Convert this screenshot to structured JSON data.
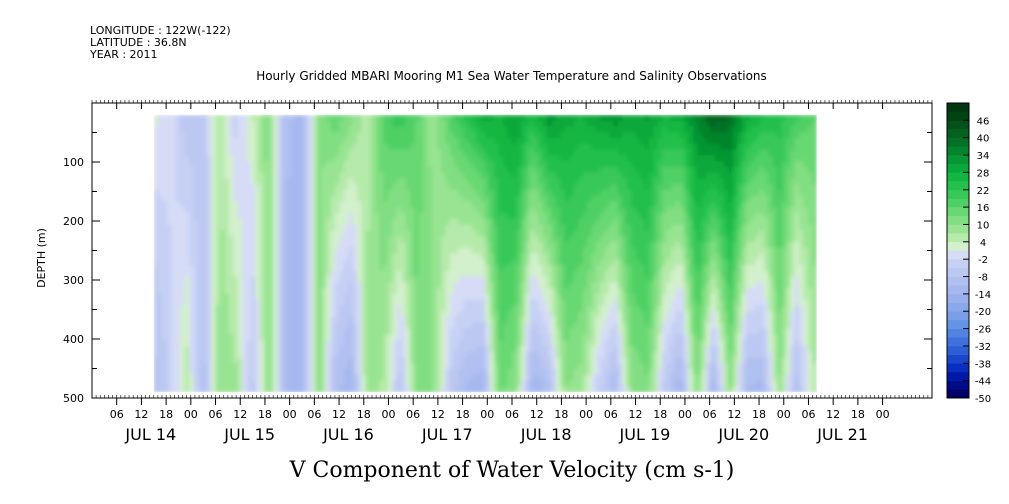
{
  "header": {
    "longitude": "LONGITUDE : 122W(-122)",
    "latitude": "LATITUDE : 36.8N",
    "year": "YEAR : 2011"
  },
  "chart_data": {
    "type": "heatmap",
    "title": "Hourly Gridded MBARI Mooring M1 Sea Water Temperature and Salinity Observations",
    "xlabel": "V Component of Water Velocity (cm s-1)",
    "ylabel": "DEPTH (m)",
    "ylim": [
      0,
      500
    ],
    "y_inverted": true,
    "xlim": [
      "2011-07-13T00:00",
      "2011-07-21T12:00"
    ],
    "y_ticks": [
      100,
      200,
      300,
      400,
      500
    ],
    "hour_ticks": [
      "06",
      "12",
      "18",
      "00",
      "06",
      "12",
      "18",
      "00",
      "06",
      "12",
      "18",
      "00",
      "06",
      "12",
      "18",
      "00",
      "06",
      "12",
      "18",
      "00",
      "06",
      "12",
      "18",
      "00",
      "06",
      "12",
      "18",
      "00",
      "06",
      "12",
      "18",
      "00"
    ],
    "day_labels": [
      "JUL 14",
      "JUL 15",
      "JUL 16",
      "JUL 17",
      "JUL 18",
      "JUL 19",
      "JUL 20",
      "JUL 21"
    ],
    "data_extent": {
      "time_start": "2011-07-13T15:00",
      "time_end": "2011-07-20T08:00",
      "depth_top": 20,
      "depth_bottom": 490
    },
    "colorbar": {
      "labels": [
        46,
        40,
        34,
        28,
        22,
        16,
        10,
        4,
        -2,
        -8,
        -14,
        -20,
        -26,
        -32,
        -38,
        -44,
        -50
      ],
      "min": -50,
      "max": 52,
      "step": 3,
      "colors_neg_to_pos": [
        "#000066",
        "#000a8a",
        "#0019a6",
        "#0a2ec0",
        "#1a46cc",
        "#2e5ed4",
        "#4070dc",
        "#5282e2",
        "#6494e6",
        "#7a9eea",
        "#8ca8ec",
        "#9ab0ee",
        "#a6b8ef",
        "#b0c0f0",
        "#bcc8f2",
        "#c6d0f4",
        "#d6dcf6",
        "#d2f0cc",
        "#b6eaaa",
        "#98e492",
        "#82de82",
        "#68d872",
        "#50d064",
        "#38c858",
        "#24c04c",
        "#14b642",
        "#0aa83a",
        "#069632",
        "#04842c",
        "#037226",
        "#02621f",
        "#025219",
        "#014414",
        "#013810"
      ]
    },
    "series": [
      {
        "time": "2011-07-13T15:00",
        "surface": 2,
        "deep": -10
      },
      {
        "time": "2011-07-13T19:00",
        "surface": 0,
        "deep": -4
      },
      {
        "time": "2011-07-13T23:00",
        "surface": -8,
        "deep": 6
      },
      {
        "time": "2011-07-14T03:00",
        "surface": -6,
        "deep": -10
      },
      {
        "time": "2011-07-14T07:00",
        "surface": 6,
        "deep": 10
      },
      {
        "time": "2011-07-14T11:00",
        "surface": -4,
        "deep": 8
      },
      {
        "time": "2011-07-14T15:00",
        "surface": 4,
        "deep": -6
      },
      {
        "time": "2011-07-14T19:00",
        "surface": 12,
        "deep": 10
      },
      {
        "time": "2011-07-14T23:00",
        "surface": -10,
        "deep": -12
      },
      {
        "time": "2011-07-15T03:00",
        "surface": -12,
        "deep": -14
      },
      {
        "time": "2011-07-15T07:00",
        "surface": 10,
        "deep": 12
      },
      {
        "time": "2011-07-15T11:00",
        "surface": 16,
        "deep": -10
      },
      {
        "time": "2011-07-15T15:00",
        "surface": 12,
        "deep": -14
      },
      {
        "time": "2011-07-15T19:00",
        "surface": 4,
        "deep": 10
      },
      {
        "time": "2011-07-15T23:00",
        "surface": 18,
        "deep": 6
      },
      {
        "time": "2011-07-16T03:00",
        "surface": 22,
        "deep": -8
      },
      {
        "time": "2011-07-16T07:00",
        "surface": 16,
        "deep": 12
      },
      {
        "time": "2011-07-16T11:00",
        "surface": 8,
        "deep": 10
      },
      {
        "time": "2011-07-16T15:00",
        "surface": 18,
        "deep": -6
      },
      {
        "time": "2011-07-16T19:00",
        "surface": 24,
        "deep": -12
      },
      {
        "time": "2011-07-16T23:00",
        "surface": 30,
        "deep": -14
      },
      {
        "time": "2011-07-17T03:00",
        "surface": 28,
        "deep": 14
      },
      {
        "time": "2011-07-17T07:00",
        "surface": 32,
        "deep": 10
      },
      {
        "time": "2011-07-17T11:00",
        "surface": 26,
        "deep": -14
      },
      {
        "time": "2011-07-17T15:00",
        "surface": 34,
        "deep": -10
      },
      {
        "time": "2011-07-17T19:00",
        "surface": 30,
        "deep": 10
      },
      {
        "time": "2011-07-17T23:00",
        "surface": 28,
        "deep": 8
      },
      {
        "time": "2011-07-18T03:00",
        "surface": 32,
        "deep": -4
      },
      {
        "time": "2011-07-18T07:00",
        "surface": 34,
        "deep": -12
      },
      {
        "time": "2011-07-18T11:00",
        "surface": 30,
        "deep": 10
      },
      {
        "time": "2011-07-18T15:00",
        "surface": 32,
        "deep": 12
      },
      {
        "time": "2011-07-18T19:00",
        "surface": 28,
        "deep": -6
      },
      {
        "time": "2011-07-18T23:00",
        "surface": 30,
        "deep": -14
      },
      {
        "time": "2011-07-19T03:00",
        "surface": 36,
        "deep": 12
      },
      {
        "time": "2011-07-19T07:00",
        "surface": 44,
        "deep": -14
      },
      {
        "time": "2011-07-19T11:00",
        "surface": 40,
        "deep": 10
      },
      {
        "time": "2011-07-19T15:00",
        "surface": 30,
        "deep": -12
      },
      {
        "time": "2011-07-19T19:00",
        "surface": 26,
        "deep": -12
      },
      {
        "time": "2011-07-19T23:00",
        "surface": 24,
        "deep": 10
      },
      {
        "time": "2011-07-20T03:00",
        "surface": 20,
        "deep": -10
      },
      {
        "time": "2011-07-20T08:00",
        "surface": 16,
        "deep": 8
      }
    ]
  }
}
